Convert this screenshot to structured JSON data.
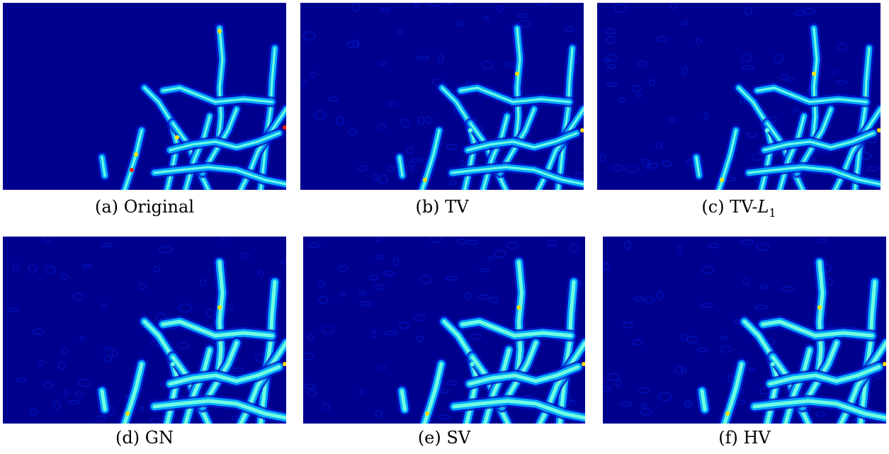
{
  "figure": {
    "panels": [
      {
        "id": "a",
        "tag": "(a)",
        "label": "Original",
        "variant": "original"
      },
      {
        "id": "b",
        "tag": "(b)",
        "label": "TV",
        "variant": "sharp"
      },
      {
        "id": "c",
        "tag": "(c)",
        "label": "TV-",
        "label_symbol": "L",
        "label_sub": "1",
        "variant": "sharp"
      },
      {
        "id": "d",
        "tag": "(d)",
        "label": "GN",
        "variant": "smooth"
      },
      {
        "id": "e",
        "tag": "(e)",
        "label": "SV",
        "variant": "smooth"
      },
      {
        "id": "f",
        "tag": "(f)",
        "label": "HV",
        "variant": "smooth"
      }
    ],
    "colormap": "jet",
    "colors": {
      "background": "#00008f",
      "low": "#0018c8",
      "mid": "#00a8ff",
      "high": "#70ffe0",
      "peak": "#ffe000",
      "max": "#ff2000"
    }
  }
}
